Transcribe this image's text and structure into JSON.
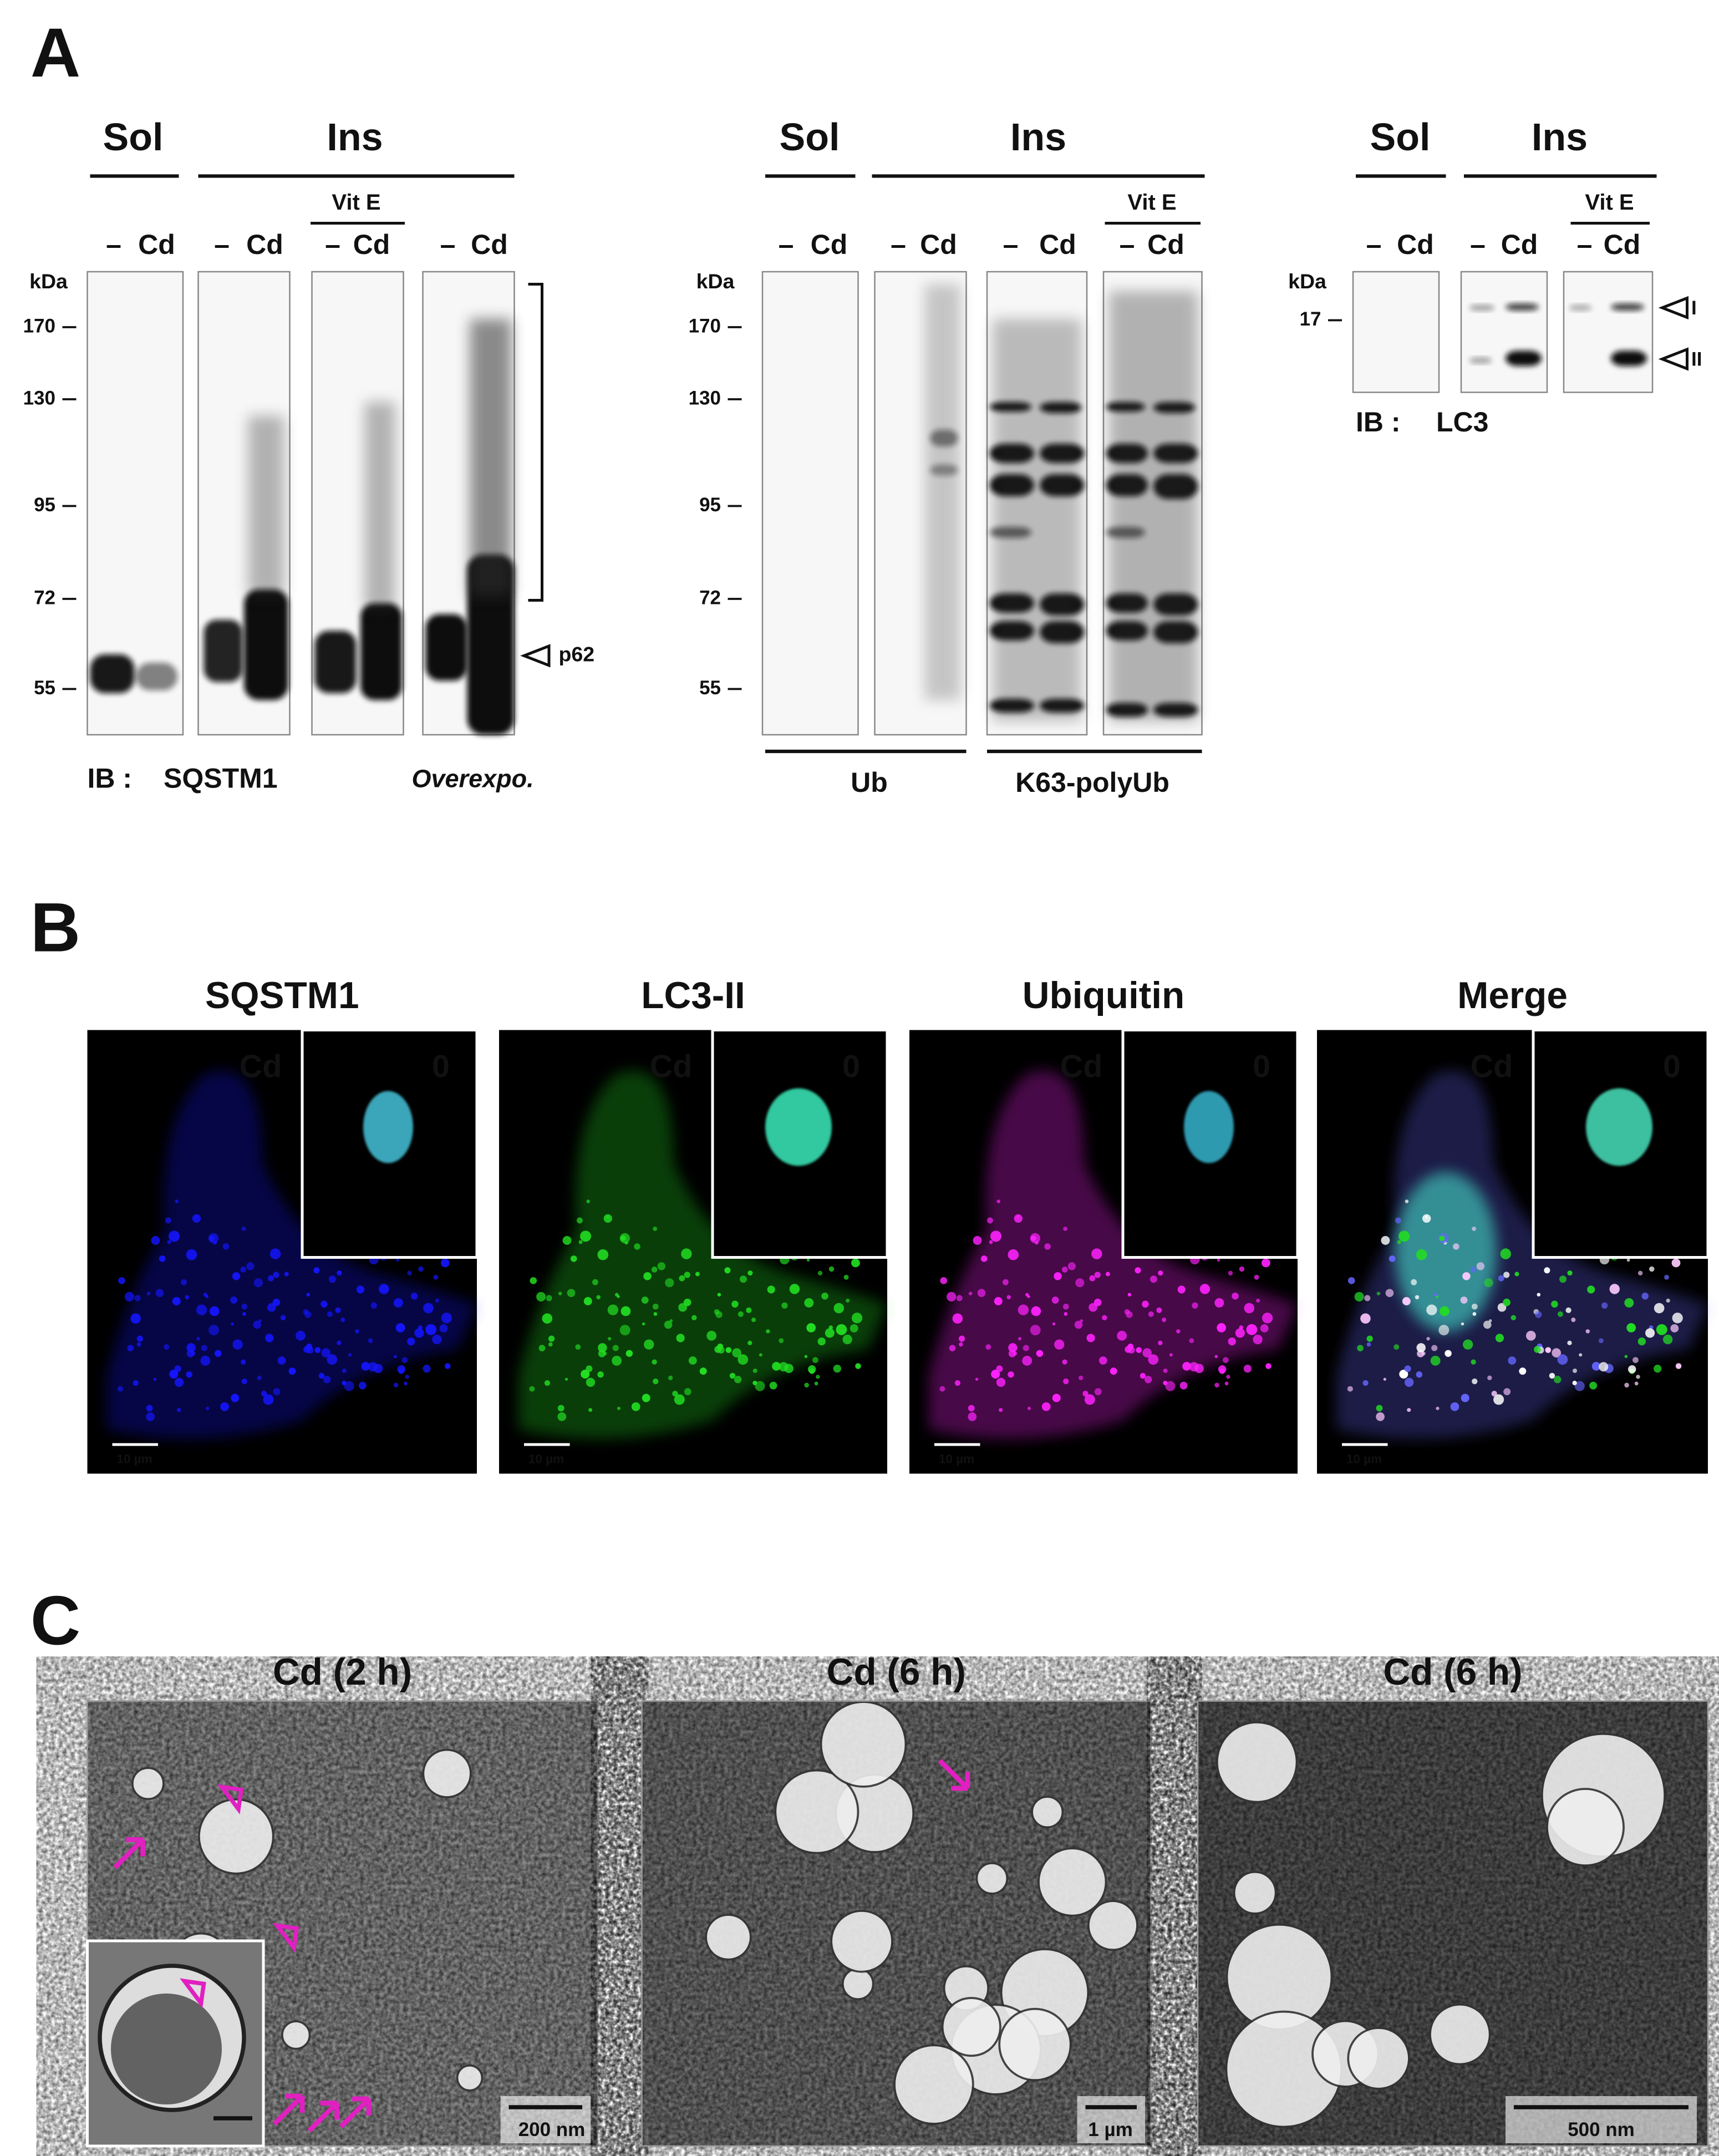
{
  "panel_a": {
    "label": "A",
    "blot_1": {
      "headers": [
        "Sol",
        "Ins"
      ],
      "vit_e": "Vit E",
      "lanes": [
        "–",
        "Cd",
        "–",
        "Cd",
        "–",
        "Cd",
        "–",
        "Cd"
      ],
      "kda": "kDa",
      "markers": [
        "170",
        "130",
        "95",
        "72",
        "55"
      ],
      "band_label": "p62",
      "ib": "IB :",
      "antibody": "SQSTM1",
      "note": "Overexpo."
    },
    "blot_2": {
      "headers": [
        "Sol",
        "Ins"
      ],
      "vit_e": "Vit E",
      "lanes": [
        "–",
        "Cd",
        "–",
        "Cd",
        "–",
        "Cd",
        "–",
        "Cd"
      ],
      "kda": "kDa",
      "markers": [
        "170",
        "130",
        "95",
        "72",
        "55"
      ],
      "footers": [
        "Ub",
        "K63-polyUb"
      ]
    },
    "blot_3": {
      "headers": [
        "Sol",
        "Ins"
      ],
      "vit_e": "Vit E",
      "lanes": [
        "–",
        "Cd",
        "–",
        "Cd",
        "–",
        "Cd"
      ],
      "kda": "kDa",
      "markers": [
        "17"
      ],
      "band_labels": [
        "I",
        "II"
      ],
      "ib": "IB :",
      "antibody": "LC3"
    }
  },
  "panel_b": {
    "label": "B",
    "panels": [
      {
        "title": "SQSTM1",
        "treatment": "Cd",
        "inset": "0",
        "scale": "10 µm"
      },
      {
        "title": "LC3-II",
        "treatment": "Cd",
        "inset": "0",
        "scale": "10 µm"
      },
      {
        "title": "Ubiquitin",
        "treatment": "Cd",
        "inset": "0",
        "scale": "10 µm"
      },
      {
        "title": "Merge",
        "treatment": "Cd",
        "inset": "0",
        "scale": "10 µm"
      }
    ]
  },
  "panel_c": {
    "label": "C",
    "panels": [
      {
        "title": "Cd (2 h)",
        "scale": "200 nm"
      },
      {
        "title": "Cd (6 h)",
        "scale": "1 µm"
      },
      {
        "title": "Cd (6 h)",
        "scale": "500 nm"
      }
    ]
  }
}
